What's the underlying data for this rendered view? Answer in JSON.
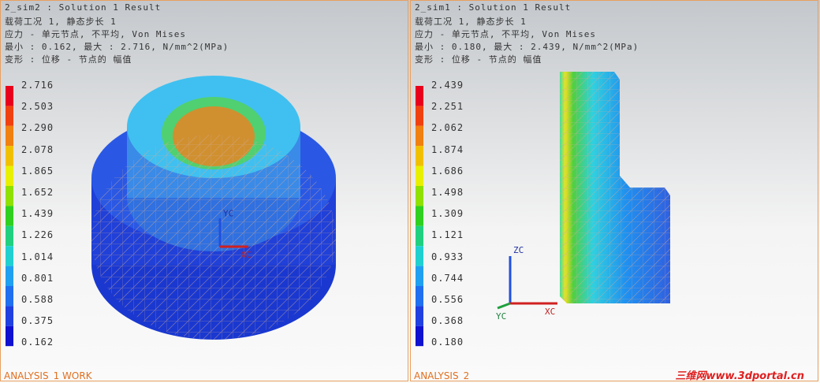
{
  "panels": [
    {
      "header": [
        "2_sim2 : Solution 1 Result",
        "载荷工况 1, 静态步长 1",
        "应力 - 单元节点, 不平均, Von Mises",
        "最小 : 0.162, 最大 : 2.716, N/mm^2(MPa)",
        "变形 : 位移 - 节点的 幅值"
      ],
      "legend": [
        "2.716",
        "2.503",
        "2.290",
        "2.078",
        "1.865",
        "1.652",
        "1.439",
        "1.226",
        "1.014",
        "0.801",
        "0.588",
        "0.375",
        "0.162"
      ],
      "triad": {
        "z": "YC",
        "x": "XC"
      },
      "footer": "ANALYSIS_1 WORK"
    },
    {
      "header": [
        "2_sim1 : Solution 1 Result",
        "载荷工况 1, 静态步长 1",
        "应力 - 单元节点, 不平均, Von Mises",
        "最小 : 0.180, 最大 : 2.439, N/mm^2(MPa)",
        "变形 : 位移 - 节点的 幅值"
      ],
      "legend": [
        "2.439",
        "2.251",
        "2.062",
        "1.874",
        "1.686",
        "1.498",
        "1.309",
        "1.121",
        "0.933",
        "0.744",
        "0.556",
        "0.368",
        "0.180"
      ],
      "triad": {
        "z": "ZC",
        "x": "XC",
        "y": "YC"
      },
      "footer": "ANALYSIS_2"
    }
  ],
  "watermark": "三维网www.3dportal.cn"
}
